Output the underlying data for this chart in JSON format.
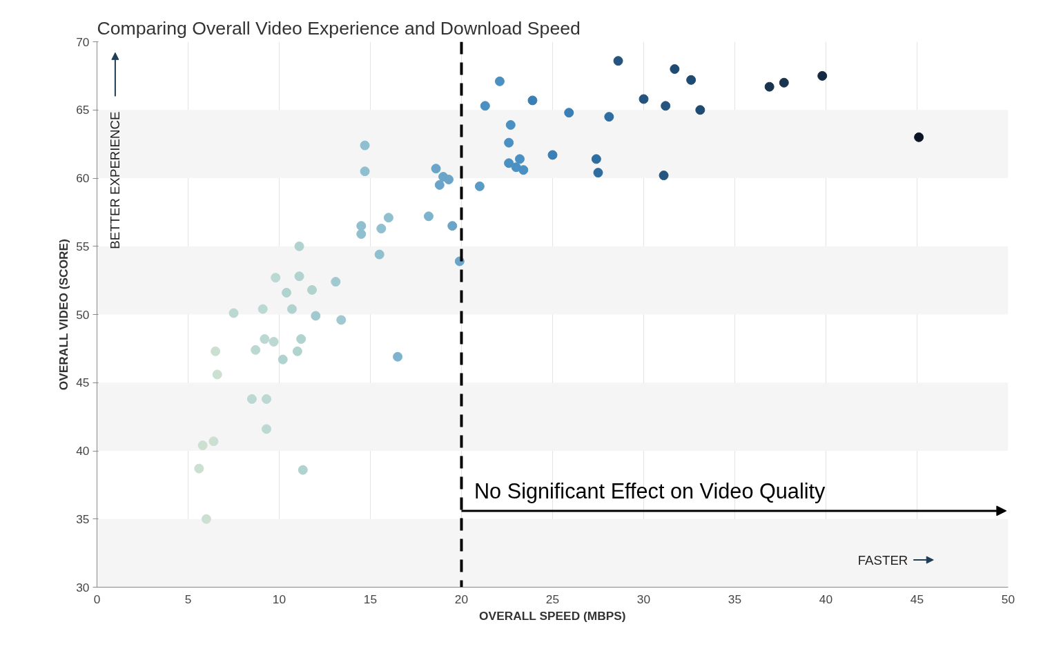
{
  "chart_data": {
    "type": "scatter",
    "title": "Comparing Overall Video Experience and Download Speed",
    "xlabel": "OVERALL SPEED (MBPS)",
    "ylabel": "OVERALL VIDEO (SCORE)",
    "annotations": [
      "BETTER EXPERIENCE",
      "FASTER",
      {
        "text": "No Significant Effect on Video Quality",
        "x": 20,
        "y": 35.6
      }
    ],
    "ref_lines": [
      {
        "axis": "x",
        "value": 20,
        "color": "#000000",
        "line_style": "dashed"
      }
    ],
    "bands": [
      {
        "axis": "y",
        "from": 30,
        "to": 35,
        "color": "#f5f5f5"
      },
      {
        "axis": "y",
        "from": 40,
        "to": 45,
        "color": "#f5f5f5"
      },
      {
        "axis": "y",
        "from": 50,
        "to": 55,
        "color": "#f5f5f5"
      },
      {
        "axis": "y",
        "from": 60,
        "to": 65,
        "color": "#f5f5f5"
      }
    ],
    "xlim": [
      0,
      50
    ],
    "ylim": [
      30,
      70
    ],
    "xticks": [
      0,
      5,
      10,
      15,
      20,
      25,
      30,
      35,
      40,
      45,
      50
    ],
    "yticks": [
      30,
      35,
      40,
      45,
      50,
      55,
      60,
      65,
      70
    ],
    "grid": "x",
    "marker": "circle",
    "x": [
      5.6,
      5.8,
      6.4,
      6.0,
      6.5,
      6.6,
      7.5,
      8.5,
      8.7,
      9.1,
      9.2,
      9.3,
      9.3,
      9.7,
      9.8,
      10.2,
      10.4,
      10.7,
      11.1,
      11.1,
      11.0,
      11.2,
      11.3,
      11.8,
      12.0,
      13.1,
      13.4,
      14.5,
      14.5,
      14.7,
      14.7,
      15.5,
      15.6,
      16.0,
      16.5,
      18.2,
      18.6,
      18.8,
      19.0,
      19.3,
      19.5,
      19.9,
      21.0,
      21.3,
      22.1,
      22.6,
      22.6,
      22.7,
      23.0,
      23.2,
      23.4,
      23.9,
      25.0,
      25.9,
      27.4,
      27.5,
      28.1,
      28.6,
      30.0,
      31.1,
      31.2,
      31.7,
      32.6,
      33.1,
      36.9,
      37.7,
      39.8,
      45.1
    ],
    "values": [
      38.7,
      40.4,
      40.7,
      35.0,
      47.3,
      45.6,
      50.1,
      43.8,
      47.4,
      50.4,
      48.2,
      43.8,
      41.6,
      48.0,
      52.7,
      46.7,
      51.6,
      50.4,
      55.0,
      52.8,
      47.3,
      48.2,
      38.6,
      51.8,
      49.9,
      52.4,
      49.6,
      56.5,
      55.9,
      62.4,
      60.5,
      54.4,
      56.3,
      57.1,
      46.9,
      57.2,
      60.7,
      59.5,
      60.1,
      59.9,
      56.5,
      53.9,
      59.4,
      65.3,
      67.1,
      61.1,
      62.6,
      63.9,
      60.8,
      61.4,
      60.6,
      65.7,
      61.7,
      64.8,
      61.4,
      60.4,
      64.5,
      68.6,
      65.8,
      60.2,
      65.3,
      68.0,
      67.2,
      65.0,
      66.7,
      67.0,
      67.5,
      63.0
    ],
    "colors": [
      "#cce0d2",
      "#cce0d2",
      "#cce0d2",
      "#cce0d2",
      "#cce0d2",
      "#cce0d2",
      "#bcd8d2",
      "#bcd8d2",
      "#bcd8d2",
      "#bcd8d2",
      "#bcd8d2",
      "#bcd8d2",
      "#bcd8d2",
      "#bcd8d2",
      "#bcd8d2",
      "#b0d3d0",
      "#b0d3d0",
      "#b0d3d0",
      "#b0d3d0",
      "#b0d3d0",
      "#b0d3d0",
      "#b0d3d0",
      "#b0d3d0",
      "#b0d3d0",
      "#a0cad0",
      "#a0cad0",
      "#a0cad0",
      "#90bfcf",
      "#90bfcf",
      "#90bfcf",
      "#90bfcf",
      "#90bfcf",
      "#90bfcf",
      "#90bfcf",
      "#7db3cc",
      "#7db3cc",
      "#6aa5c9",
      "#6aa5c9",
      "#6aa5c9",
      "#6aa5c9",
      "#6aa5c9",
      "#6aa5c9",
      "#5a9bc6",
      "#4a90c2",
      "#4a90c2",
      "#4a90c2",
      "#4a90c2",
      "#4a90c2",
      "#4a90c2",
      "#4a90c2",
      "#4a90c2",
      "#3a7fb5",
      "#3a7fb5",
      "#3a7fb5",
      "#2f6da0",
      "#2f6da0",
      "#2f6da0",
      "#25547f",
      "#25547f",
      "#25547f",
      "#25547f",
      "#1f4a72",
      "#1f4a72",
      "#1f4a72",
      "#1a3450",
      "#1a3450",
      "#142a42",
      "#0b1526"
    ]
  }
}
